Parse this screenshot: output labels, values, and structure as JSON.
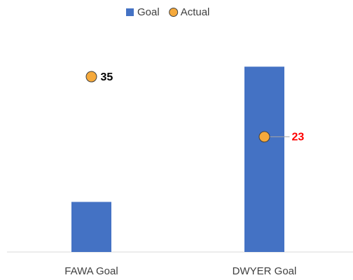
{
  "chart_data": {
    "type": "combo",
    "categories": [
      "FAWA Goal",
      "DWYER Goal"
    ],
    "series": [
      {
        "name": "Goal",
        "type": "bar",
        "color": "#4472c4",
        "values": [
          10,
          37
        ]
      },
      {
        "name": "Actual",
        "type": "scatter",
        "color": "#f5a93b",
        "values": [
          35,
          23
        ],
        "label_colors": [
          "#000000",
          "#ff0000"
        ]
      }
    ],
    "ylim": [
      0,
      45
    ],
    "legend": "top"
  }
}
